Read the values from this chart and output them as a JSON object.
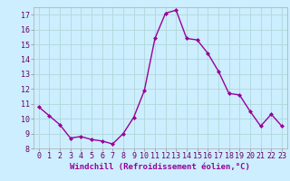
{
  "x": [
    0,
    1,
    2,
    3,
    4,
    5,
    6,
    7,
    8,
    9,
    10,
    11,
    12,
    13,
    14,
    15,
    16,
    17,
    18,
    19,
    20,
    21,
    22,
    23
  ],
  "y": [
    10.8,
    10.2,
    9.6,
    8.7,
    8.8,
    8.6,
    8.5,
    8.3,
    9.0,
    10.1,
    11.9,
    15.4,
    17.1,
    17.3,
    15.4,
    15.3,
    14.4,
    13.2,
    11.7,
    11.6,
    10.5,
    9.5,
    10.3,
    9.5
  ],
  "line_color": "#990099",
  "marker": "D",
  "marker_size": 2.0,
  "bg_color": "#cceeff",
  "grid_color": "#b0d8d8",
  "xlabel": "Windchill (Refroidissement éolien,°C)",
  "xlabel_fontsize": 6.5,
  "ylim": [
    8,
    17.5
  ],
  "yticks": [
    8,
    9,
    10,
    11,
    12,
    13,
    14,
    15,
    16,
    17
  ],
  "xticks": [
    0,
    1,
    2,
    3,
    4,
    5,
    6,
    7,
    8,
    9,
    10,
    11,
    12,
    13,
    14,
    15,
    16,
    17,
    18,
    19,
    20,
    21,
    22,
    23
  ],
  "tick_fontsize": 6.0,
  "line_width": 1.0
}
